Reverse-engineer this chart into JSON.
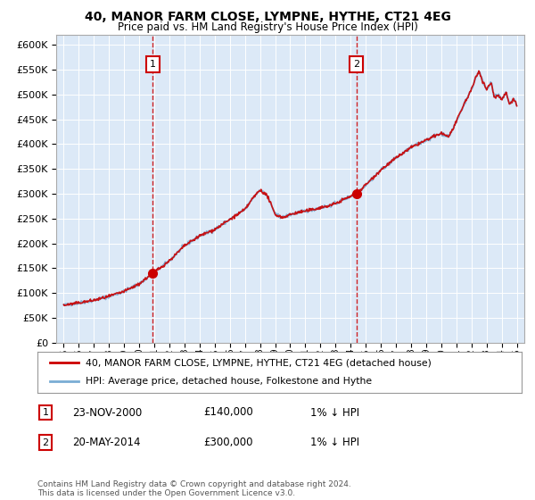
{
  "title": "40, MANOR FARM CLOSE, LYMPNE, HYTHE, CT21 4EG",
  "subtitle": "Price paid vs. HM Land Registry's House Price Index (HPI)",
  "legend_label_red": "40, MANOR FARM CLOSE, LYMPNE, HYTHE, CT21 4EG (detached house)",
  "legend_label_blue": "HPI: Average price, detached house, Folkestone and Hythe",
  "sale1_date": "23-NOV-2000",
  "sale1_price": 140000,
  "sale1_label": "1% ↓ HPI",
  "sale2_date": "20-MAY-2014",
  "sale2_price": 300000,
  "sale2_label": "1% ↓ HPI",
  "footer": "Contains HM Land Registry data © Crown copyright and database right 2024.\nThis data is licensed under the Open Government Licence v3.0.",
  "ylim": [
    0,
    620000
  ],
  "yticks": [
    0,
    50000,
    100000,
    150000,
    200000,
    250000,
    300000,
    350000,
    400000,
    450000,
    500000,
    550000,
    600000
  ],
  "plot_bg": "#dce9f7",
  "red_color": "#cc0000",
  "blue_color": "#7aadd4",
  "sale1_x": 2000.9,
  "sale2_x": 2014.38
}
